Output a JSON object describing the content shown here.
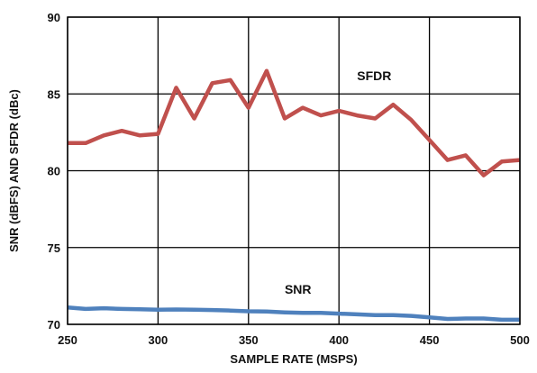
{
  "chart_data": {
    "type": "line",
    "title": "",
    "xlabel": "SAMPLE RATE (MSPS)",
    "ylabel": "SNR (dBFS) AND SFDR (dBc)",
    "xlim": [
      250,
      500
    ],
    "ylim": [
      70,
      90
    ],
    "xticks": [
      "250",
      "300",
      "350",
      "400",
      "450",
      "500"
    ],
    "yticks": [
      "70",
      "75",
      "80",
      "85",
      "90"
    ],
    "grid": true,
    "series": [
      {
        "name": "SFDR",
        "color": "#c0504d",
        "x": [
          250,
          260,
          270,
          280,
          290,
          300,
          310,
          320,
          330,
          340,
          350,
          360,
          370,
          380,
          390,
          400,
          410,
          420,
          430,
          440,
          450,
          460,
          470,
          480,
          490,
          500
        ],
        "values": [
          81.8,
          81.8,
          82.3,
          82.6,
          82.3,
          82.4,
          85.4,
          83.4,
          85.7,
          85.9,
          84.1,
          86.5,
          83.4,
          84.1,
          83.6,
          83.9,
          83.6,
          83.4,
          84.3,
          83.3,
          82.0,
          80.7,
          81.0,
          79.7,
          80.6,
          80.7
        ]
      },
      {
        "name": "SNR",
        "color": "#4f81bd",
        "x": [
          250,
          260,
          270,
          280,
          290,
          300,
          310,
          320,
          330,
          340,
          350,
          360,
          370,
          380,
          390,
          400,
          410,
          420,
          430,
          440,
          450,
          460,
          470,
          480,
          490,
          500
        ],
        "values": [
          71.1,
          71.0,
          71.05,
          71.0,
          70.98,
          70.95,
          70.97,
          70.95,
          70.93,
          70.9,
          70.85,
          70.83,
          70.78,
          70.75,
          70.75,
          70.7,
          70.65,
          70.6,
          70.6,
          70.55,
          70.45,
          70.35,
          70.38,
          70.38,
          70.3,
          70.3
        ]
      }
    ],
    "annotations": [
      {
        "text": "SFDR",
        "x": 410,
        "y": 85.9
      },
      {
        "text": "SNR",
        "x": 370,
        "y": 72.0
      }
    ]
  }
}
